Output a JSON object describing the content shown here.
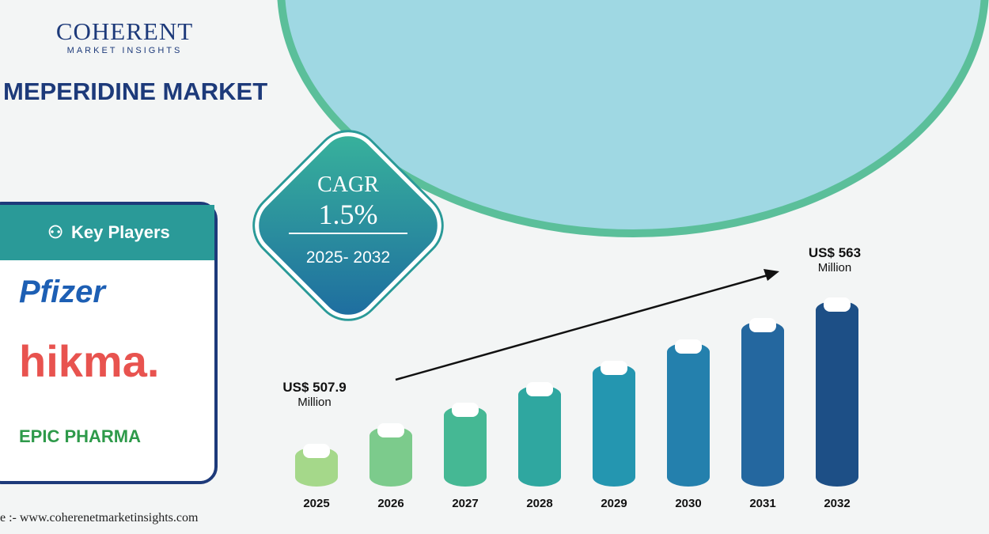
{
  "brand": {
    "name": "COHERENT",
    "tagline": "MARKET INSIGHTS"
  },
  "title": "MEPERIDINE MARKET",
  "key_players": {
    "heading": "Key Players",
    "players": [
      "Pfizer",
      "hikma.",
      "EPIC PHARMA"
    ]
  },
  "cagr": {
    "label": "CAGR",
    "value": "1.5%",
    "period": "2025- 2032"
  },
  "source": "e :- www.coherenetmarketinsights.com",
  "colors": {
    "navy": "#1d3a7a",
    "teal": "#2a9a98",
    "hikma": "#e8534f"
  },
  "chart_data": {
    "type": "bar",
    "categories": [
      "2025",
      "2026",
      "2027",
      "2028",
      "2029",
      "2030",
      "2031",
      "2032"
    ],
    "values": [
      507.9,
      515.5,
      523.3,
      531.1,
      539.1,
      547.2,
      555.4,
      563
    ],
    "unit": "US$ Million",
    "annotations": [
      {
        "year": "2025",
        "text": "US$ 507.9",
        "sub": "Million"
      },
      {
        "year": "2032",
        "text": "US$ 563",
        "sub": "Million"
      }
    ],
    "bar_colors": [
      "#a5d88a",
      "#7ccb8c",
      "#45b894",
      "#2fa7a0",
      "#2496b0",
      "#2480ad",
      "#24679f",
      "#1d4f86"
    ]
  }
}
